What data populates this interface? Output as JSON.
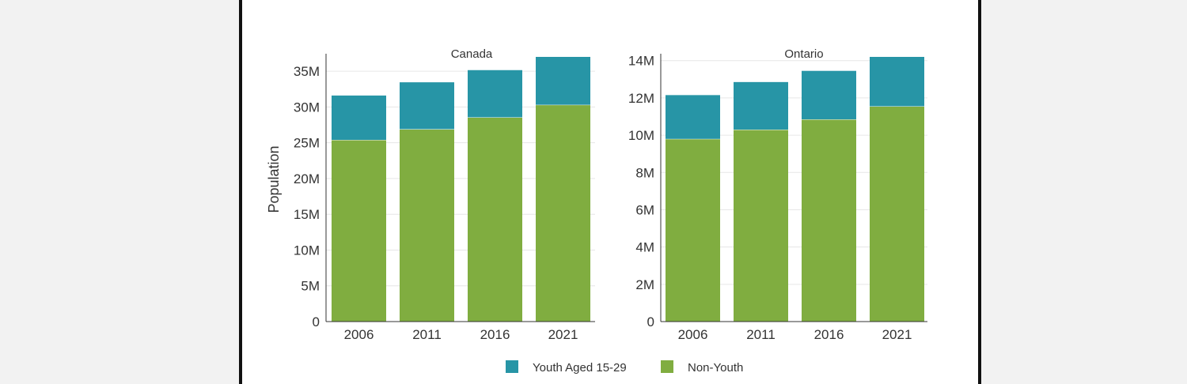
{
  "colors": {
    "youth": "#2795a6",
    "non_youth": "#80ad40",
    "grid": "#e6e6e6",
    "axis": "#333333"
  },
  "chart_data": [
    {
      "type": "bar",
      "stacked": true,
      "title": "Canada",
      "ylabel": "Population",
      "categories": [
        "2006",
        "2011",
        "2016",
        "2021"
      ],
      "ylim": [
        0,
        37000000
      ],
      "yticks": [
        0,
        5000000,
        10000000,
        15000000,
        20000000,
        25000000,
        30000000,
        35000000
      ],
      "ytick_labels": [
        "0",
        "5M",
        "10M",
        "15M",
        "20M",
        "25M",
        "30M",
        "35M"
      ],
      "series": [
        {
          "name": "Non-Youth",
          "values": [
            25400000,
            26900000,
            28550000,
            30300000
          ]
        },
        {
          "name": "Youth Aged 15-29",
          "values": [
            6200000,
            6550000,
            6600000,
            6700000
          ]
        }
      ],
      "grid": true
    },
    {
      "type": "bar",
      "stacked": true,
      "title": "Ontario",
      "ylabel": "",
      "categories": [
        "2006",
        "2011",
        "2016",
        "2021"
      ],
      "ylim": [
        0,
        14200000
      ],
      "yticks": [
        0,
        2000000,
        4000000,
        6000000,
        8000000,
        10000000,
        12000000,
        14000000
      ],
      "ytick_labels": [
        "0",
        "2M",
        "4M",
        "6M",
        "8M",
        "10M",
        "12M",
        "14M"
      ],
      "series": [
        {
          "name": "Non-Youth",
          "values": [
            9800000,
            10300000,
            10850000,
            11550000
          ]
        },
        {
          "name": "Youth Aged 15-29",
          "values": [
            2350000,
            2550000,
            2600000,
            2650000
          ]
        }
      ],
      "grid": true
    }
  ],
  "legend": {
    "placement": "bottom-center",
    "items": [
      {
        "label": "Youth Aged 15-29",
        "color": "#2795a6"
      },
      {
        "label": "Non-Youth",
        "color": "#80ad40"
      }
    ]
  }
}
